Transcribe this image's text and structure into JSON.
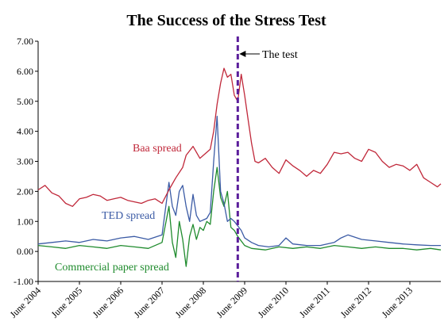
{
  "chart_data": {
    "type": "line",
    "title": "The Success of the Stress Test",
    "xlabel": "",
    "ylabel": "",
    "x_ticks": [
      "June 2004",
      "June 2005",
      "June 2006",
      "June 2007",
      "June 2008",
      "June 2009",
      "June 2010",
      "June 2011",
      "June 2012",
      "June 2013"
    ],
    "y_ticks": [
      "7.00",
      "6.00",
      "5.00",
      "4.00",
      "3.00",
      "2.00",
      "1.00",
      "0.00",
      "-1.00"
    ],
    "ylim": [
      -1,
      7
    ],
    "xlim": [
      "2004-06",
      "2014-03"
    ],
    "grid": false,
    "event_marker": {
      "x": "2009-04",
      "label": "The test",
      "color": "#5b1e9b"
    },
    "series": [
      {
        "name": "Baa spread",
        "color": "#c0283a",
        "x": [
          "2004-06",
          "2004-08",
          "2004-10",
          "2004-12",
          "2005-02",
          "2005-04",
          "2005-06",
          "2005-08",
          "2005-10",
          "2005-12",
          "2006-02",
          "2006-04",
          "2006-06",
          "2006-08",
          "2006-10",
          "2006-12",
          "2007-02",
          "2007-04",
          "2007-06",
          "2007-08",
          "2007-10",
          "2007-12",
          "2008-01",
          "2008-03",
          "2008-05",
          "2008-07",
          "2008-08",
          "2008-09",
          "2008-10",
          "2008-11",
          "2008-12",
          "2009-01",
          "2009-02",
          "2009-03",
          "2009-04",
          "2009-05",
          "2009-06",
          "2009-07",
          "2009-08",
          "2009-09",
          "2009-10",
          "2009-12",
          "2010-02",
          "2010-04",
          "2010-06",
          "2010-08",
          "2010-10",
          "2010-12",
          "2011-02",
          "2011-04",
          "2011-06",
          "2011-08",
          "2011-10",
          "2011-12",
          "2012-02",
          "2012-04",
          "2012-06",
          "2012-08",
          "2012-10",
          "2012-12",
          "2013-02",
          "2013-04",
          "2013-06",
          "2013-08",
          "2013-10",
          "2013-12",
          "2014-02",
          "2014-03"
        ],
        "values": [
          2.05,
          2.2,
          1.95,
          1.85,
          1.6,
          1.5,
          1.75,
          1.8,
          1.9,
          1.85,
          1.7,
          1.75,
          1.8,
          1.7,
          1.65,
          1.6,
          1.7,
          1.75,
          1.6,
          2.05,
          2.45,
          2.8,
          3.2,
          3.5,
          3.1,
          3.3,
          3.4,
          4.0,
          4.9,
          5.6,
          6.1,
          5.8,
          5.9,
          5.2,
          5.0,
          5.9,
          5.2,
          4.4,
          3.6,
          3.0,
          2.95,
          3.1,
          2.8,
          2.6,
          3.05,
          2.85,
          2.7,
          2.5,
          2.7,
          2.6,
          2.9,
          3.3,
          3.25,
          3.3,
          3.1,
          3.0,
          3.4,
          3.3,
          3.0,
          2.8,
          2.9,
          2.85,
          2.7,
          2.9,
          2.45,
          2.3,
          2.15,
          2.25
        ]
      },
      {
        "name": "TED spread",
        "color": "#3b5ba5",
        "x": [
          "2004-06",
          "2004-10",
          "2005-02",
          "2005-06",
          "2005-10",
          "2006-02",
          "2006-06",
          "2006-10",
          "2007-02",
          "2007-06",
          "2007-08",
          "2007-09",
          "2007-10",
          "2007-11",
          "2007-12",
          "2008-01",
          "2008-02",
          "2008-03",
          "2008-04",
          "2008-05",
          "2008-06",
          "2008-07",
          "2008-08",
          "2008-09",
          "2008-10",
          "2008-11",
          "2008-12",
          "2009-01",
          "2009-02",
          "2009-03",
          "2009-04",
          "2009-05",
          "2009-06",
          "2009-08",
          "2009-10",
          "2010-01",
          "2010-04",
          "2010-06",
          "2010-08",
          "2010-12",
          "2011-04",
          "2011-08",
          "2011-10",
          "2011-12",
          "2012-04",
          "2012-08",
          "2012-12",
          "2013-04",
          "2013-08",
          "2013-12",
          "2014-03"
        ],
        "values": [
          0.25,
          0.3,
          0.35,
          0.3,
          0.4,
          0.35,
          0.45,
          0.5,
          0.4,
          0.55,
          2.3,
          1.5,
          1.2,
          2.0,
          2.2,
          1.5,
          1.0,
          1.9,
          1.2,
          1.0,
          1.05,
          1.1,
          1.3,
          3.0,
          4.5,
          2.0,
          1.6,
          1.0,
          1.1,
          1.0,
          0.85,
          0.7,
          0.45,
          0.3,
          0.2,
          0.15,
          0.2,
          0.45,
          0.25,
          0.2,
          0.2,
          0.3,
          0.45,
          0.55,
          0.4,
          0.35,
          0.3,
          0.25,
          0.22,
          0.2,
          0.2
        ]
      },
      {
        "name": "Commercial paper spread",
        "color": "#1f8b2d",
        "x": [
          "2004-06",
          "2004-10",
          "2005-02",
          "2005-06",
          "2005-10",
          "2006-02",
          "2006-06",
          "2006-10",
          "2007-02",
          "2007-06",
          "2007-08",
          "2007-09",
          "2007-10",
          "2007-11",
          "2007-12",
          "2008-01",
          "2008-02",
          "2008-03",
          "2008-04",
          "2008-05",
          "2008-06",
          "2008-07",
          "2008-08",
          "2008-09",
          "2008-10",
          "2008-11",
          "2008-12",
          "2009-01",
          "2009-02",
          "2009-03",
          "2009-04",
          "2009-06",
          "2009-08",
          "2009-12",
          "2010-04",
          "2010-08",
          "2010-12",
          "2011-04",
          "2011-08",
          "2011-12",
          "2012-04",
          "2012-08",
          "2012-12",
          "2013-04",
          "2013-08",
          "2013-12",
          "2014-03"
        ],
        "values": [
          0.2,
          0.15,
          0.1,
          0.2,
          0.15,
          0.1,
          0.2,
          0.15,
          0.1,
          0.3,
          1.5,
          0.3,
          -0.2,
          1.0,
          0.4,
          -0.5,
          0.5,
          0.9,
          0.4,
          0.8,
          0.7,
          1.0,
          0.9,
          2.0,
          2.8,
          1.8,
          1.5,
          2.0,
          0.8,
          0.7,
          0.5,
          0.2,
          0.1,
          0.05,
          0.15,
          0.1,
          0.15,
          0.1,
          0.2,
          0.15,
          0.1,
          0.15,
          0.1,
          0.1,
          0.05,
          0.1,
          0.05
        ]
      }
    ]
  }
}
